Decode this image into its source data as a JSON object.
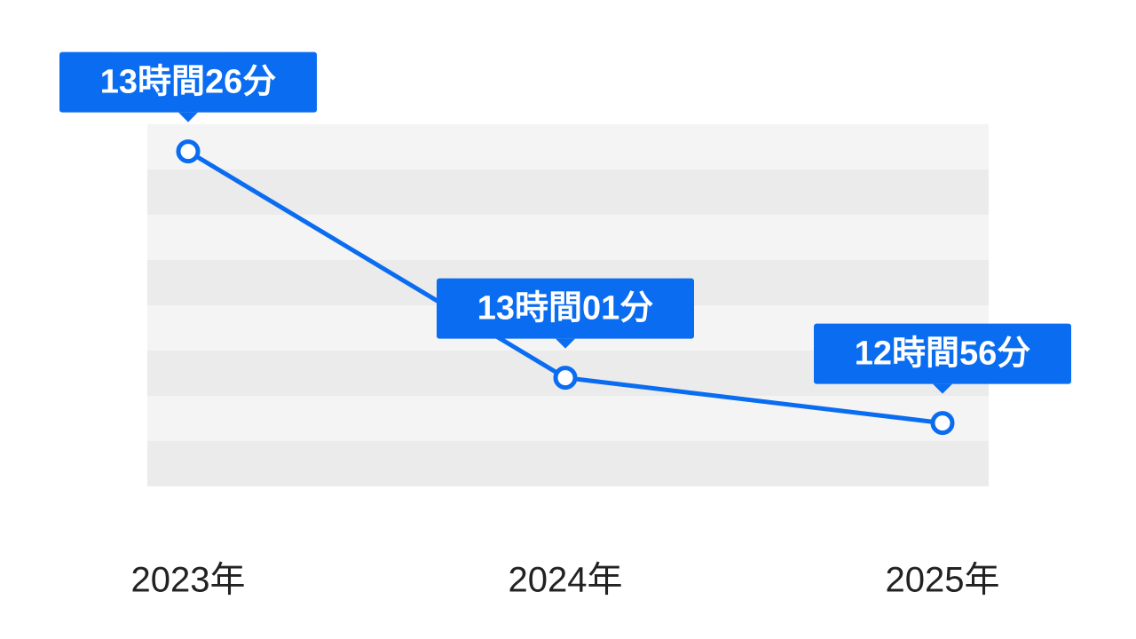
{
  "chart_data": {
    "type": "line",
    "categories": [
      "2023年",
      "2024年",
      "2025年"
    ],
    "values": [
      806,
      781,
      776
    ],
    "value_labels": [
      "13時間26分",
      "13時間01分",
      "12時間56分"
    ],
    "color": "#0a6cf0",
    "ylim": [
      769,
      809
    ]
  }
}
